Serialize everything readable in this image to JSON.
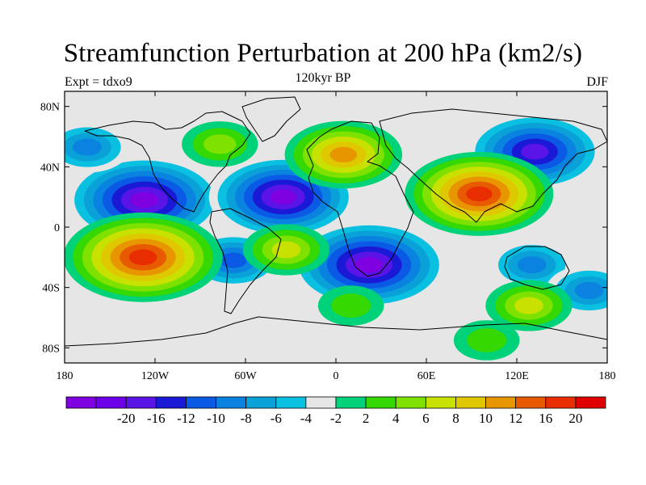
{
  "header": {
    "title": "Streamfunction Perturbation at 200 hPa (km2/s)",
    "left_label": "Expt = tdxo9",
    "center_label": "120kyr BP",
    "right_label": "DJF"
  },
  "map": {
    "projection": "cylindrical-equidistant",
    "background": "#e6e6e6",
    "x_ticks": [
      "180",
      "120W",
      "60W",
      "0",
      "60E",
      "120E",
      "180"
    ],
    "y_ticks": [
      "80N",
      "40N",
      "0",
      "40S",
      "80S"
    ],
    "features": [
      {
        "lon": -127,
        "lat": 18,
        "value": -22
      },
      {
        "lon": -35,
        "lat": 20,
        "value": -20
      },
      {
        "lon": 22,
        "lat": -25,
        "value": -22
      },
      {
        "lon": -68,
        "lat": -22,
        "value": -10
      },
      {
        "lon": 132,
        "lat": 50,
        "value": -18
      },
      {
        "lon": -165,
        "lat": 53,
        "value": -8
      },
      {
        "lon": 130,
        "lat": -25,
        "value": -8
      },
      {
        "lon": 168,
        "lat": -42,
        "value": -8
      },
      {
        "lon": -128,
        "lat": -20,
        "value": 22
      },
      {
        "lon": 5,
        "lat": 48,
        "value": 14
      },
      {
        "lon": 95,
        "lat": 22,
        "value": 20
      },
      {
        "lon": -33,
        "lat": -15,
        "value": 8
      },
      {
        "lon": -77,
        "lat": 55,
        "value": 6
      },
      {
        "lon": 128,
        "lat": -52,
        "value": 8
      },
      {
        "lon": 10,
        "lat": -52,
        "value": 4
      },
      {
        "lon": 100,
        "lat": -75,
        "value": 4
      }
    ]
  },
  "colorbar": {
    "colors": [
      "#7f00e0",
      "#6e00e8",
      "#5a14e6",
      "#1a1ad6",
      "#0a5ae6",
      "#0a82e0",
      "#0aa0d8",
      "#0ac0e0",
      "#e6e6e6",
      "#00d27a",
      "#35d800",
      "#7fe100",
      "#c8e100",
      "#e0c800",
      "#e89600",
      "#e85a00",
      "#e82d00",
      "#e00000"
    ],
    "labels": [
      "-20",
      "-16",
      "-12",
      "-10",
      "-8",
      "-6",
      "-4",
      "-2",
      "2",
      "4",
      "6",
      "8",
      "10",
      "12",
      "16",
      "20"
    ]
  }
}
